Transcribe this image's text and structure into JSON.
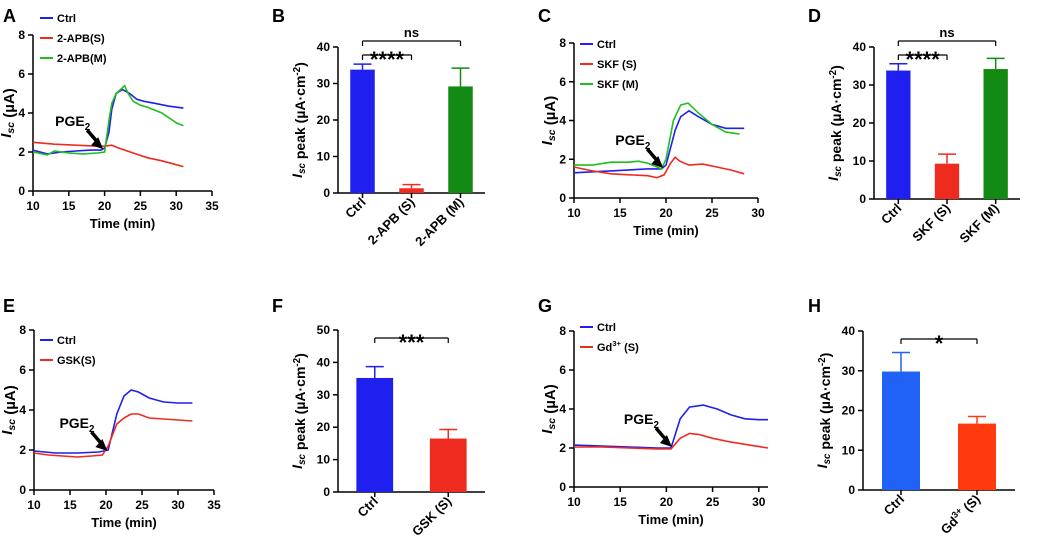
{
  "chart_data": [
    {
      "panel": "A",
      "type": "line",
      "xlabel": "Time (min)",
      "ylabel": "Isc (µA)",
      "xlim": [
        10,
        35
      ],
      "ylim": [
        0,
        8
      ],
      "xticks": [
        10,
        15,
        20,
        25,
        30,
        35
      ],
      "yticks": [
        0,
        2,
        4,
        6,
        8
      ],
      "annotation": "PGE2",
      "series": [
        {
          "name": "Ctrl",
          "color": "#1f1fef",
          "points": [
            [
              10,
              2.1
            ],
            [
              12,
              1.9
            ],
            [
              14,
              2.0
            ],
            [
              16,
              2.05
            ],
            [
              18,
              2.1
            ],
            [
              19.5,
              2.1
            ],
            [
              20,
              2.2
            ],
            [
              20.6,
              3.0
            ],
            [
              21,
              4.2
            ],
            [
              21.6,
              5.0
            ],
            [
              22.5,
              5.2
            ],
            [
              23.5,
              5.0
            ],
            [
              24.5,
              4.7
            ],
            [
              25.5,
              4.6
            ],
            [
              27,
              4.5
            ],
            [
              29,
              4.35
            ],
            [
              31,
              4.25
            ]
          ]
        },
        {
          "name": "2-APB(S)",
          "color": "#ef2b1f",
          "points": [
            [
              10,
              2.5
            ],
            [
              13,
              2.4
            ],
            [
              16,
              2.35
            ],
            [
              19,
              2.3
            ],
            [
              20,
              2.3
            ],
            [
              21,
              2.35
            ],
            [
              22,
              2.2
            ],
            [
              24,
              1.95
            ],
            [
              26,
              1.7
            ],
            [
              28,
              1.55
            ],
            [
              30,
              1.35
            ],
            [
              31,
              1.25
            ]
          ]
        },
        {
          "name": "2-APB(M)",
          "color": "#1fbf1f",
          "points": [
            [
              10,
              2.0
            ],
            [
              12,
              1.85
            ],
            [
              13,
              2.05
            ],
            [
              15,
              1.95
            ],
            [
              17,
              1.9
            ],
            [
              19,
              1.95
            ],
            [
              20,
              2.0
            ],
            [
              20.6,
              3.6
            ],
            [
              21,
              4.5
            ],
            [
              21.6,
              5.0
            ],
            [
              22.2,
              5.2
            ],
            [
              22.8,
              5.4
            ],
            [
              23.3,
              5.0
            ],
            [
              24,
              4.6
            ],
            [
              25,
              4.4
            ],
            [
              26,
              4.3
            ],
            [
              28,
              4.0
            ],
            [
              30,
              3.5
            ],
            [
              31,
              3.35
            ]
          ]
        }
      ]
    },
    {
      "panel": "B",
      "type": "bar",
      "ylabel": "Isc peak (µA·cm-2)",
      "ylim": [
        0,
        40
      ],
      "yticks": [
        0,
        10,
        20,
        30,
        40
      ],
      "categories": [
        "Ctrl",
        "2-APB (S)",
        "2-APB (M)"
      ],
      "values": [
        33.8,
        1.3,
        29.2
      ],
      "errors": [
        1.5,
        1.0,
        5.0
      ],
      "colors": [
        "#1f1fef",
        "#ef2b1f",
        "#138a13"
      ],
      "significance": [
        {
          "label": "****",
          "from": 0,
          "to": 1,
          "level": 1
        },
        {
          "label": "ns",
          "from": 0,
          "to": 2,
          "level": 2
        }
      ]
    },
    {
      "panel": "C",
      "type": "line",
      "xlabel": "Time (min)",
      "ylabel": "Isc (µA)",
      "xlim": [
        10,
        30
      ],
      "ylim": [
        0,
        8
      ],
      "xticks": [
        10,
        15,
        20,
        25,
        30
      ],
      "yticks": [
        0,
        2,
        4,
        6,
        8
      ],
      "annotation": "PGE2",
      "series": [
        {
          "name": "Ctrl",
          "color": "#1f1fef",
          "points": [
            [
              10,
              1.3
            ],
            [
              12,
              1.35
            ],
            [
              14,
              1.4
            ],
            [
              16,
              1.45
            ],
            [
              18,
              1.5
            ],
            [
              19.5,
              1.5
            ],
            [
              20,
              1.7
            ],
            [
              21,
              3.5
            ],
            [
              21.6,
              4.2
            ],
            [
              22.5,
              4.5
            ],
            [
              23.5,
              4.2
            ],
            [
              25,
              3.8
            ],
            [
              26.5,
              3.6
            ],
            [
              28.5,
              3.6
            ]
          ]
        },
        {
          "name": "SKF (S)",
          "color": "#ef2b1f",
          "points": [
            [
              10,
              1.6
            ],
            [
              12,
              1.4
            ],
            [
              14,
              1.25
            ],
            [
              16,
              1.2
            ],
            [
              18,
              1.15
            ],
            [
              19,
              1.05
            ],
            [
              19.8,
              1.2
            ],
            [
              20.5,
              1.8
            ],
            [
              21,
              2.1
            ],
            [
              21.5,
              1.9
            ],
            [
              22.5,
              1.7
            ],
            [
              24,
              1.75
            ],
            [
              25.5,
              1.6
            ],
            [
              27,
              1.45
            ],
            [
              28.5,
              1.25
            ]
          ]
        },
        {
          "name": "SKF (M)",
          "color": "#1fbf1f",
          "points": [
            [
              10,
              1.7
            ],
            [
              12,
              1.7
            ],
            [
              14,
              1.85
            ],
            [
              16,
              1.85
            ],
            [
              17,
              1.9
            ],
            [
              18,
              1.8
            ],
            [
              19.5,
              1.5
            ],
            [
              20,
              2.0
            ],
            [
              20.8,
              4.0
            ],
            [
              21.6,
              4.8
            ],
            [
              22.4,
              4.9
            ],
            [
              23.5,
              4.4
            ],
            [
              25,
              3.8
            ],
            [
              26.5,
              3.4
            ],
            [
              28,
              3.3
            ]
          ]
        }
      ]
    },
    {
      "panel": "D",
      "type": "bar",
      "ylabel": "Isc peak (µA·cm-2)",
      "ylim": [
        0,
        40
      ],
      "yticks": [
        0,
        10,
        20,
        30,
        40
      ],
      "categories": [
        "Ctrl",
        "SKF (S)",
        "SKF (M)"
      ],
      "values": [
        33.8,
        9.3,
        34.2
      ],
      "errors": [
        1.8,
        2.5,
        2.8
      ],
      "colors": [
        "#1f1fef",
        "#ef2b1f",
        "#138a13"
      ],
      "significance": [
        {
          "label": "****",
          "from": 0,
          "to": 1,
          "level": 1
        },
        {
          "label": "ns",
          "from": 0,
          "to": 2,
          "level": 2
        }
      ]
    },
    {
      "panel": "E",
      "type": "line",
      "xlabel": "Time (min)",
      "ylabel": "Isc (µA)",
      "xlim": [
        10,
        35
      ],
      "ylim": [
        0,
        8
      ],
      "xticks": [
        10,
        15,
        20,
        25,
        30,
        35
      ],
      "yticks": [
        0,
        2,
        4,
        6,
        8
      ],
      "annotation": "PGE2",
      "series": [
        {
          "name": "Ctrl",
          "color": "#1f1fef",
          "points": [
            [
              10,
              1.95
            ],
            [
              13,
              1.85
            ],
            [
              16,
              1.85
            ],
            [
              19,
              1.9
            ],
            [
              20.3,
              2.0
            ],
            [
              21.5,
              3.8
            ],
            [
              22.5,
              4.7
            ],
            [
              23.5,
              5.0
            ],
            [
              24.5,
              4.9
            ],
            [
              26,
              4.6
            ],
            [
              28,
              4.4
            ],
            [
              30,
              4.35
            ],
            [
              32,
              4.35
            ]
          ]
        },
        {
          "name": "GSK(S)",
          "color": "#ef2b1f",
          "points": [
            [
              10,
              1.85
            ],
            [
              12,
              1.75
            ],
            [
              14,
              1.7
            ],
            [
              16,
              1.65
            ],
            [
              18,
              1.7
            ],
            [
              19.5,
              1.75
            ],
            [
              20.3,
              2.2
            ],
            [
              21.5,
              3.3
            ],
            [
              22.5,
              3.6
            ],
            [
              23.5,
              3.8
            ],
            [
              24.5,
              3.8
            ],
            [
              26,
              3.6
            ],
            [
              28,
              3.55
            ],
            [
              32,
              3.45
            ]
          ]
        }
      ]
    },
    {
      "panel": "F",
      "type": "bar",
      "ylabel": "Isc peak (µA·cm-2)",
      "ylim": [
        0,
        50
      ],
      "yticks": [
        0,
        10,
        20,
        30,
        40,
        50
      ],
      "categories": [
        "Ctrl",
        "GSK (S)"
      ],
      "values": [
        35.2,
        16.5
      ],
      "errors": [
        3.5,
        2.8
      ],
      "colors": [
        "#1f1fef",
        "#ef2b1f"
      ],
      "significance": [
        {
          "label": "***",
          "from": 0,
          "to": 1,
          "level": 1
        }
      ]
    },
    {
      "panel": "G",
      "type": "line",
      "xlabel": "Time (min)",
      "ylabel": "Isc (µA)",
      "xlim": [
        10,
        31
      ],
      "ylim": [
        0,
        8
      ],
      "xticks": [
        10,
        15,
        20,
        25,
        30
      ],
      "yticks": [
        0,
        2,
        4,
        6,
        8
      ],
      "annotation": "PGE2",
      "series": [
        {
          "name": "Ctrl",
          "color": "#1f1fef",
          "points": [
            [
              10,
              2.15
            ],
            [
              13,
              2.1
            ],
            [
              16,
              2.05
            ],
            [
              19,
              2.0
            ],
            [
              20.5,
              2.0
            ],
            [
              21.5,
              3.5
            ],
            [
              22.5,
              4.1
            ],
            [
              24,
              4.2
            ],
            [
              25.5,
              4.0
            ],
            [
              27,
              3.7
            ],
            [
              28.5,
              3.5
            ],
            [
              30,
              3.45
            ],
            [
              31,
              3.45
            ]
          ]
        },
        {
          "name": "Gd3+ (S)",
          "color": "#ef2b1f",
          "points": [
            [
              10,
              2.05
            ],
            [
              13,
              2.05
            ],
            [
              16,
              2.0
            ],
            [
              19,
              1.95
            ],
            [
              20.5,
              1.95
            ],
            [
              21.5,
              2.5
            ],
            [
              22.5,
              2.75
            ],
            [
              23.5,
              2.7
            ],
            [
              25,
              2.5
            ],
            [
              27,
              2.3
            ],
            [
              29,
              2.15
            ],
            [
              31,
              2.0
            ]
          ]
        }
      ]
    },
    {
      "panel": "H",
      "type": "bar",
      "ylabel": "Isc peak (µA·cm-2)",
      "ylim": [
        0,
        40
      ],
      "yticks": [
        0,
        10,
        20,
        30,
        40
      ],
      "categories": [
        "Ctrl",
        "Gd3+ (S)"
      ],
      "values": [
        29.8,
        16.7
      ],
      "errors": [
        4.8,
        1.8
      ],
      "colors": [
        "#1f62f5",
        "#ff3a0f"
      ],
      "significance": [
        {
          "label": "*",
          "from": 0,
          "to": 1,
          "level": 1
        }
      ]
    }
  ]
}
